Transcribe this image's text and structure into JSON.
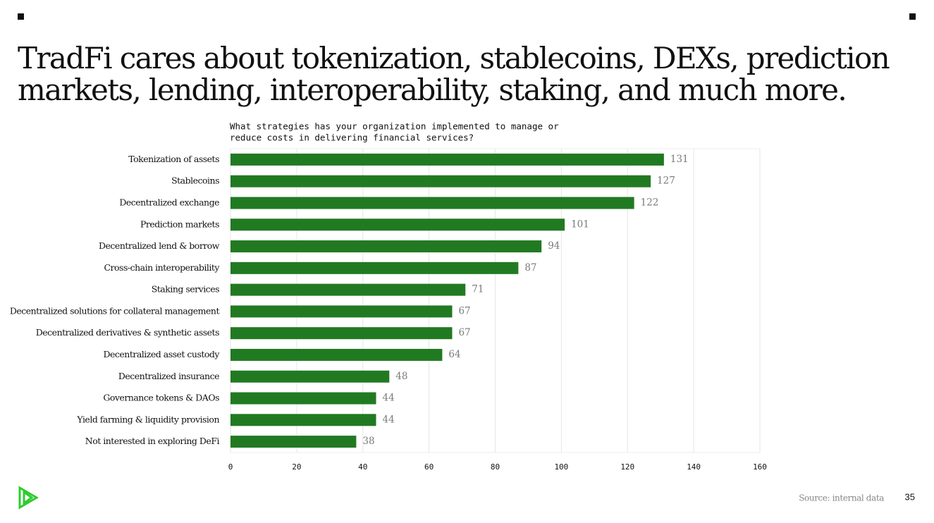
{
  "chart_data": {
    "type": "bar",
    "orientation": "horizontal",
    "title": [
      "TradFi cares about tokenization, stablecoins, DEXs, prediction",
      "markets, lending, interoperability, staking, and much more."
    ],
    "subtitle": [
      "What strategies has your organization implemented to manage or",
      "reduce costs in delivering financial services?"
    ],
    "categories": [
      "Tokenization of assets",
      "Stablecoins",
      "Decentralized exchange",
      "Prediction markets",
      "Decentralized lend & borrow",
      "Cross-chain interoperability",
      "Staking services",
      "Decentralized solutions for collateral management",
      "Decentralized derivatives & synthetic assets",
      "Decentralized asset custody",
      "Decentralized insurance",
      "Governance tokens & DAOs",
      "Yield farming & liquidity provision",
      "Not interested in exploring DeFi"
    ],
    "values": [
      131,
      127,
      122,
      101,
      94,
      87,
      71,
      67,
      67,
      64,
      48,
      44,
      44,
      38
    ],
    "color": "#217a21",
    "xlim": [
      0,
      160
    ],
    "xticks": [
      0,
      20,
      40,
      60,
      80,
      100,
      120,
      140,
      160
    ],
    "grid": true
  },
  "footer": {
    "source": "Source: internal data",
    "page_number": 35
  }
}
